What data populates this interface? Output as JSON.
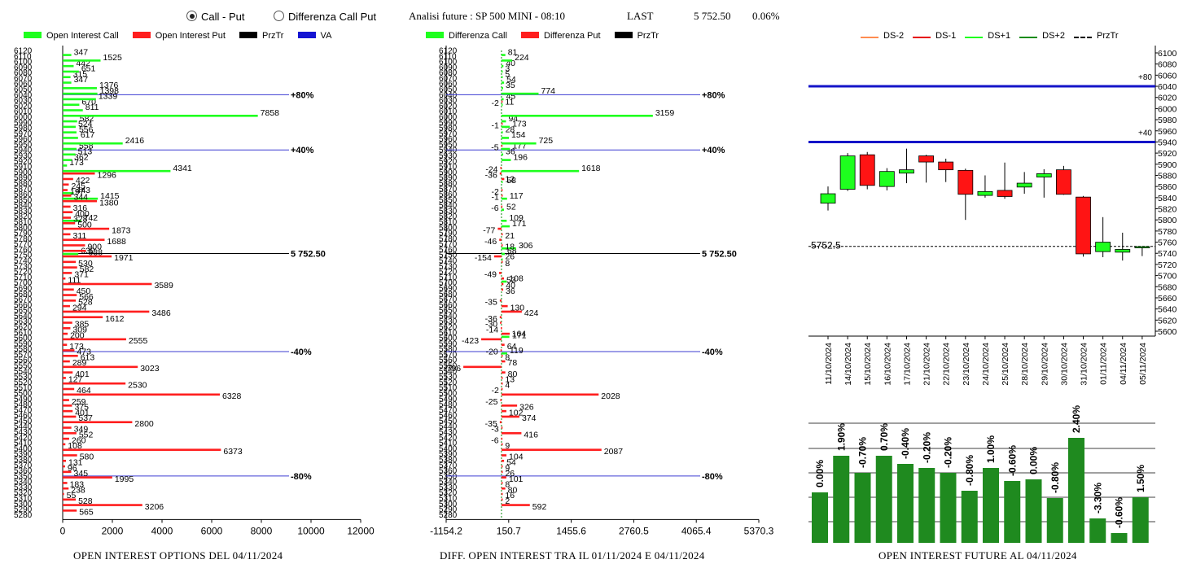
{
  "header": {
    "radio_call_put": "Call - Put",
    "radio_diff": "Differenza Call Put",
    "title": "Analisi future : SP 500 MINI - 08:10",
    "last_label": "LAST",
    "last_value": "5 752.50",
    "change": "0.06%"
  },
  "captions": {
    "left": "OPEN INTEREST OPTIONS DEL 04/11/2024",
    "mid": "DIFF. OPEN INTEREST TRA IL 01/11/2024 E 04/11/2024",
    "right": "OPEN INTEREST FUTURE AL 04/11/2024"
  },
  "legends": {
    "left": [
      {
        "label": "Open Interest Call",
        "color": "#1eff1e"
      },
      {
        "label": "Open Interest Put",
        "color": "#ff1e1e"
      },
      {
        "label": "PrzTr",
        "color": "#000000"
      },
      {
        "label": "VA",
        "color": "#1414d2"
      }
    ],
    "mid": [
      {
        "label": "Differenza Call",
        "color": "#1eff1e"
      },
      {
        "label": "Differenza Put",
        "color": "#ff1e1e"
      },
      {
        "label": "PrzTr",
        "color": "#000000"
      }
    ],
    "right": [
      {
        "label": "DS-2",
        "color": "#ff8c50",
        "style": "solid"
      },
      {
        "label": "DS-1",
        "color": "#e60000",
        "style": "solid"
      },
      {
        "label": "DS+1",
        "color": "#1eff1e",
        "style": "solid"
      },
      {
        "label": "DS+2",
        "color": "#148c14",
        "style": "solid"
      },
      {
        "label": "PrzTr",
        "color": "#000000",
        "style": "dashed"
      }
    ]
  },
  "chart_data": [
    {
      "type": "bar",
      "orientation": "horizontal",
      "xlim": [
        0,
        12000
      ],
      "xticks": [
        "0",
        "2000",
        "4000",
        "6000",
        "8000",
        "10000",
        "12000"
      ],
      "strikes": [
        6120,
        6110,
        6100,
        6090,
        6080,
        6070,
        6060,
        6050,
        6040,
        6030,
        6020,
        6010,
        6000,
        5990,
        5980,
        5970,
        5960,
        5950,
        5940,
        5930,
        5920,
        5910,
        5900,
        5890,
        5880,
        5870,
        5860,
        5850,
        5840,
        5830,
        5820,
        5810,
        5800,
        5790,
        5780,
        5770,
        5760,
        5750,
        5740,
        5730,
        5720,
        5710,
        5700,
        5690,
        5680,
        5670,
        5660,
        5650,
        5640,
        5630,
        5620,
        5610,
        5600,
        5590,
        5580,
        5570,
        5560,
        5550,
        5540,
        5530,
        5520,
        5510,
        5500,
        5490,
        5480,
        5470,
        5460,
        5450,
        5440,
        5430,
        5420,
        5410,
        5400,
        5390,
        5380,
        5370,
        5360,
        5350,
        5340,
        5330,
        5320,
        5310,
        5300,
        5290,
        5280
      ],
      "series": [
        {
          "name": "Open Interest Call",
          "color": "#1eff1e",
          "values": {
            "6110": 347,
            "6100": 1525,
            "6090": 442,
            "6080": 651,
            "6070": 315,
            "6060": 347,
            "6050": 1376,
            "6040": 1398,
            "6030": 1339,
            "6020": 670,
            "6010": 811,
            "6000": 7858,
            "5990": 582,
            "5980": 524,
            "5970": 556,
            "5960": 617,
            "5950": 2416,
            "5940": 558,
            "5930": 513,
            "5920": 362,
            "5910": 173,
            "5900": 4341,
            "5860": 443,
            "5850": 1415,
            "5810": 742,
            "5750": 630
          }
        },
        {
          "name": "Open Interest Put",
          "color": "#ff1e1e",
          "values": {
            "5900": 1296,
            "5890": 422,
            "5880": 245,
            "5870": 197,
            "5860": 344,
            "5850": 1380,
            "5840": 316,
            "5830": 400,
            "5820": 328,
            "5810": 500,
            "5800": 1873,
            "5790": 311,
            "5780": 1688,
            "5770": 900,
            "5760": 938,
            "5750": 1971,
            "5740": 530,
            "5730": 582,
            "5720": 371,
            "5710": 111,
            "5700": 3589,
            "5690": 450,
            "5680": 566,
            "5670": 528,
            "5660": 294,
            "5650": 3486,
            "5640": 1612,
            "5630": 385,
            "5620": 309,
            "5610": 200,
            "5600": 2555,
            "5590": 173,
            "5580": 473,
            "5570": 613,
            "5560": 289,
            "5550": 3023,
            "5540": 401,
            "5530": 127,
            "5520": 2530,
            "5510": 464,
            "5500": 6328,
            "5490": 259,
            "5480": 375,
            "5470": 401,
            "5460": 537,
            "5450": 2800,
            "5440": 349,
            "5430": 552,
            "5420": 260,
            "5410": 108,
            "5400": 6373,
            "5390": 580,
            "5380": 131,
            "5370": 96,
            "5360": 345,
            "5350": 1995,
            "5340": 183,
            "5330": 238,
            "5320": 55,
            "5310": 528,
            "5300": 3206,
            "5290": 565
          }
        }
      ],
      "lines": [
        {
          "label": "+80%",
          "strike": 6040
        },
        {
          "label": "+40%",
          "strike": 5940
        },
        {
          "label": "5 752.50",
          "strike": 5752.5
        },
        {
          "label": "-40%",
          "strike": 5575
        },
        {
          "label": "-80%",
          "strike": 5350
        }
      ],
      "caption": "OPEN INTEREST OPTIONS DEL 04/11/2024"
    },
    {
      "type": "bar",
      "orientation": "horizontal",
      "xlim": [
        -1154.2,
        5370.3
      ],
      "xticks": [
        "-1154.2",
        "150.7",
        "1455.6",
        "2760.5",
        "4065.4",
        "5370.3"
      ],
      "series": [
        {
          "name": "Differenza Call",
          "color": "#1eff1e",
          "values": {
            "6110": 81,
            "6100": 224,
            "6090": 40,
            "6080": 3,
            "6070": 5,
            "6060": 54,
            "6050": 35,
            "6040": 774,
            "6030": 45,
            "6020": 11,
            "6000": 3159,
            "5990": 94,
            "5980": 173,
            "5970": 28,
            "5960": 154,
            "5950": 725,
            "5940": 177,
            "5930": 36,
            "5920": 196,
            "5900": 1618,
            "5880": 12,
            "5850": 117,
            "5830": 52,
            "5810": 109,
            "5800": 171,
            "5760": 306,
            "5750": 68,
            "5740": 26,
            "5700": 108,
            "5600": 164,
            "5570": 119
          }
        },
        {
          "name": "Differenza Put",
          "color": "#ff1e1e",
          "values": {
            "6030": -2,
            "5990": -1,
            "5950": -5,
            "5910": -24,
            "5900": -36,
            "5890": 58,
            "5870": -2,
            "5860": -1,
            "5840": -6,
            "5800": -77,
            "5790": 21,
            "5780": -46,
            "5770": 18,
            "5750": -154,
            "5740": 8,
            "5720": -49,
            "5710": 53,
            "5700": 40,
            "5690": 36,
            "5670": -35,
            "5660": 130,
            "5650": 424,
            "5640": -36,
            "5630": -30,
            "5620": -14,
            "5610": 171,
            "5600": -423,
            "5590": 64,
            "5580": -20,
            "5570": 8,
            "5560": 78,
            "5550": -796,
            "5540": 80,
            "5530": 13,
            "5520": 4,
            "5510": -2,
            "5500": 2028,
            "5490": -25,
            "5480": 326,
            "5470": 102,
            "5460": 374,
            "5450": -35,
            "5440": -3,
            "5430": 416,
            "5420": -6,
            "5410": 9,
            "5400": 2087,
            "5390": 104,
            "5380": 54,
            "5370": 9,
            "5360": 26,
            "5350": 101,
            "5340": 8,
            "5330": 80,
            "5320": 16,
            "5310": 2,
            "5300": 592
          }
        }
      ],
      "lines": [
        {
          "label": "+80%",
          "strike": 6040
        },
        {
          "label": "+40%",
          "strike": 5940
        },
        {
          "label": "5 752.50",
          "strike": 5752.5
        },
        {
          "label": "-40%",
          "strike": 5575
        },
        {
          "label": "-80%",
          "strike": 5350
        }
      ],
      "caption": "DIFF. OPEN INTEREST TRA IL 01/11/2024 E 04/11/2024"
    },
    {
      "type": "candlestick",
      "ylim": [
        5600,
        6100
      ],
      "yticks": [
        6100,
        6080,
        6060,
        6040,
        6020,
        6000,
        5980,
        5960,
        5940,
        5920,
        5900,
        5880,
        5860,
        5840,
        5820,
        5800,
        5780,
        5760,
        5740,
        5720,
        5700,
        5680,
        5660,
        5640,
        5620,
        5600
      ],
      "dates": [
        "11/10/2024",
        "14/10/2024",
        "15/10/2024",
        "16/10/2024",
        "17/10/2024",
        "21/10/2024",
        "22/10/2024",
        "23/10/2024",
        "24/10/2024",
        "25/10/2024",
        "28/10/2024",
        "29/10/2024",
        "30/10/2024",
        "31/10/2024",
        "01/11/2024",
        "04/11/2024",
        "05/11/2024"
      ],
      "candles": [
        {
          "open": 5830,
          "high": 5860,
          "low": 5817,
          "close": 5847
        },
        {
          "open": 5855,
          "high": 5920,
          "low": 5852,
          "close": 5915
        },
        {
          "open": 5917,
          "high": 5922,
          "low": 5855,
          "close": 5862
        },
        {
          "open": 5860,
          "high": 5893,
          "low": 5853,
          "close": 5887
        },
        {
          "open": 5884,
          "high": 5928,
          "low": 5866,
          "close": 5890
        },
        {
          "open": 5915,
          "high": 5917,
          "low": 5867,
          "close": 5904
        },
        {
          "open": 5904,
          "high": 5910,
          "low": 5868,
          "close": 5890
        },
        {
          "open": 5889,
          "high": 5892,
          "low": 5800,
          "close": 5846
        },
        {
          "open": 5844,
          "high": 5880,
          "low": 5840,
          "close": 5851
        },
        {
          "open": 5853,
          "high": 5903,
          "low": 5838,
          "close": 5842
        },
        {
          "open": 5859,
          "high": 5886,
          "low": 5847,
          "close": 5866
        },
        {
          "open": 5877,
          "high": 5891,
          "low": 5840,
          "close": 5883
        },
        {
          "open": 5890,
          "high": 5897,
          "low": 5845,
          "close": 5846
        },
        {
          "open": 5841,
          "high": 5843,
          "low": 5734,
          "close": 5739
        },
        {
          "open": 5743,
          "high": 5805,
          "low": 5733,
          "close": 5760
        },
        {
          "open": 5742,
          "high": 5777,
          "low": 5727,
          "close": 5747
        },
        {
          "open": 5752,
          "high": 5752,
          "low": 5735,
          "close": 5752
        }
      ],
      "hlines": [
        {
          "label": "+80",
          "value": 6040
        },
        {
          "label": "+40",
          "value": 5940
        }
      ],
      "price_line": {
        "label": "5752.5",
        "value": 5752.5
      }
    },
    {
      "type": "bar",
      "values": [
        0.0,
        1.9,
        -0.7,
        0.7,
        -0.4,
        -0.2,
        -0.2,
        -0.8,
        1.0,
        -0.6,
        0.0,
        -0.8,
        2.4,
        -3.3,
        -0.6,
        1.5
      ],
      "labels": [
        "0.00%",
        "1.90%",
        "-0.70%",
        "0.70%",
        "-0.40%",
        "-0.20%",
        "-0.20%",
        "-0.80%",
        "1.00%",
        "-0.60%",
        "0.00%",
        "-0.80%",
        "2.40%",
        "-3.30%",
        "-0.60%",
        "1.50%"
      ],
      "heights": [
        62,
        107,
        86,
        107,
        97,
        92,
        86,
        64,
        92,
        76,
        78,
        55,
        129,
        30,
        12,
        56
      ],
      "caption": "OPEN INTEREST FUTURE AL 04/11/2024"
    }
  ]
}
